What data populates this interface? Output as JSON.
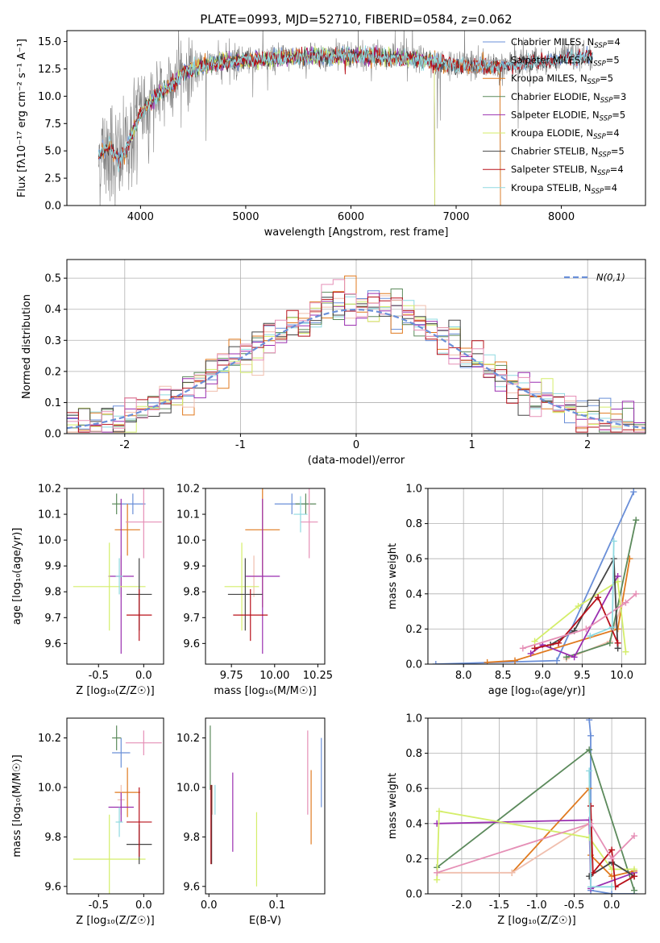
{
  "colors": [
    "#6a8fd8",
    "#e07a1f",
    "#f0bfae",
    "#5c8a5c",
    "#9a2fb0",
    "#d4ee6a",
    "#444444",
    "#b8101a",
    "#e58fb6",
    "#8fd9e0"
  ],
  "spectrum_colors": [
    "#6a8fd8",
    "#aaaaaa",
    "#e07a1f",
    "#5c8a5c",
    "#9a2fb0",
    "#d4ee6a",
    "#444444",
    "#b8101a",
    "#8fd9e0"
  ],
  "chart_data": [
    {
      "id": "spectrum",
      "type": "line",
      "title": "PLATE=0993, MJD=52710, FIBERID=0584, z=0.062",
      "xlabel": "wavelength [Angstrom, rest frame]",
      "ylabel": "Flux [fλ10⁻¹⁷ erg cm⁻² s⁻¹ A⁻¹]",
      "xlim": [
        3300,
        8800
      ],
      "ylim": [
        0,
        16
      ],
      "xticks": [
        4000,
        5000,
        6000,
        7000,
        8000
      ],
      "yticks": [
        0.0,
        2.5,
        5.0,
        7.5,
        10.0,
        12.5,
        15.0
      ],
      "legend_position": "top-right",
      "legend": [
        {
          "name": "Chabrier MILES, N",
          "sub": "SSP",
          "tail": "=4"
        },
        {
          "name": "Salpeter MILES, N",
          "sub": "SSP",
          "tail": "=5"
        },
        {
          "name": "Kroupa MILES, N",
          "sub": "SSP",
          "tail": "=5"
        },
        {
          "name": "Chabrier ELODIE, N",
          "sub": "SSP",
          "tail": "=3"
        },
        {
          "name": "Salpeter ELODIE, N",
          "sub": "SSP",
          "tail": "=5"
        },
        {
          "name": "Kroupa ELODIE, N",
          "sub": "SSP",
          "tail": "=4"
        },
        {
          "name": "Chabrier STELIB, N",
          "sub": "SSP",
          "tail": "=5"
        },
        {
          "name": "Salpeter STELIB, N",
          "sub": "SSP",
          "tail": "=4"
        },
        {
          "name": "Kroupa STELIB, N",
          "sub": "SSP",
          "tail": "=4"
        }
      ],
      "model_trend": {
        "x": [
          3600,
          3700,
          3800,
          3900,
          4000,
          4100,
          4200,
          4300,
          4400,
          4500,
          4700,
          5000,
          5300,
          5600,
          6000,
          6500,
          7000,
          7400,
          7800,
          8300
        ],
        "y": [
          4.5,
          5.5,
          4.0,
          6.0,
          8.5,
          9.5,
          10.5,
          11.0,
          12.0,
          12.5,
          13.0,
          13.3,
          13.5,
          13.6,
          13.7,
          13.5,
          12.8,
          12.7,
          13.2,
          13.6
        ]
      },
      "model_extents": [
        {
          "start": 3600,
          "end": 8300,
          "drop_at": null
        },
        {
          "start": 3600,
          "end": 7450,
          "drop_at": 7420
        },
        {
          "start": 3600,
          "end": 7450,
          "drop_at": 7420
        },
        {
          "start": 3900,
          "end": 6800,
          "drop_at": 6795
        },
        {
          "start": 3900,
          "end": 6800,
          "drop_at": 6795
        },
        {
          "start": 3900,
          "end": 6800,
          "drop_at": 6795
        },
        {
          "start": 3600,
          "end": 8300,
          "drop_at": null
        },
        {
          "start": 3600,
          "end": 8300,
          "drop_at": null
        },
        {
          "start": 3600,
          "end": 8300,
          "drop_at": null
        }
      ]
    },
    {
      "id": "residuals",
      "type": "histogram",
      "xlabel": "(data-model)/error",
      "ylabel": "Normed distribution",
      "xlim": [
        -2.5,
        2.5
      ],
      "ylim": [
        0,
        0.56
      ],
      "xticks": [
        -2,
        -1,
        0,
        1,
        2
      ],
      "yticks": [
        0.0,
        0.1,
        0.2,
        0.3,
        0.4,
        0.5
      ],
      "reference": {
        "label": "N(0,1)",
        "color": "#6a8fd8"
      },
      "bin_width": 0.1,
      "bin_start": -2.5
    },
    {
      "id": "age-vs-Z",
      "type": "errorbar",
      "xlabel": "Z [log₁₀(Z/Z☉)]",
      "ylabel": "age  [log₁₀(age/yr)]",
      "xlim": [
        -0.85,
        0.22
      ],
      "ylim": [
        9.52,
        10.2
      ],
      "xticks": [
        -0.5,
        0.0
      ],
      "yticks": [
        9.6,
        9.7,
        9.8,
        9.9,
        10.0,
        10.1,
        10.2
      ],
      "points": [
        {
          "x": -0.12,
          "y": 10.14,
          "xerr": 0.14,
          "yerr": 0.04
        },
        {
          "x": -0.18,
          "y": 10.04,
          "xerr": 0.14,
          "yerr": 0.1
        },
        {
          "x": -0.25,
          "y": 9.86,
          "xerr": 0.04,
          "yerr": 0.08
        },
        {
          "x": -0.3,
          "y": 10.14,
          "xerr": 0.05,
          "yerr": 0.04
        },
        {
          "x": -0.25,
          "y": 9.86,
          "xerr": 0.14,
          "yerr": 0.3
        },
        {
          "x": -0.38,
          "y": 9.82,
          "xerr": 0.4,
          "yerr": 0.17
        },
        {
          "x": -0.05,
          "y": 9.79,
          "xerr": 0.14,
          "yerr": 0.14
        },
        {
          "x": -0.05,
          "y": 9.71,
          "xerr": 0.14,
          "yerr": 0.1
        },
        {
          "x": 0.0,
          "y": 10.07,
          "xerr": 0.2,
          "yerr": 0.14
        },
        {
          "x": -0.27,
          "y": 9.86,
          "xerr": 0.04,
          "yerr": 0.07
        }
      ]
    },
    {
      "id": "age-vs-mass",
      "type": "errorbar",
      "xlabel": "mass [log₁₀(M/M☉)]",
      "ylabel": "",
      "xlim": [
        9.6,
        10.29
      ],
      "ylim": [
        9.52,
        10.2
      ],
      "xticks": [
        9.75,
        10.0,
        10.25
      ],
      "yticks": [
        9.6,
        9.7,
        9.8,
        9.9,
        10.0,
        10.1,
        10.2
      ],
      "points": [
        {
          "x": 10.1,
          "y": 10.14,
          "xerr": 0.1,
          "yerr": 0.04
        },
        {
          "x": 9.93,
          "y": 10.04,
          "xerr": 0.1,
          "yerr": 0.3
        },
        {
          "x": 9.88,
          "y": 9.86,
          "xerr": 0.04,
          "yerr": 0.08
        },
        {
          "x": 10.18,
          "y": 10.14,
          "xerr": 0.06,
          "yerr": 0.04
        },
        {
          "x": 9.93,
          "y": 9.86,
          "xerr": 0.1,
          "yerr": 0.3
        },
        {
          "x": 9.81,
          "y": 9.82,
          "xerr": 0.1,
          "yerr": 0.17
        },
        {
          "x": 9.83,
          "y": 9.79,
          "xerr": 0.1,
          "yerr": 0.14
        },
        {
          "x": 9.86,
          "y": 9.71,
          "xerr": 0.1,
          "yerr": 0.1
        },
        {
          "x": 10.2,
          "y": 10.07,
          "xerr": 0.05,
          "yerr": 0.14
        },
        {
          "x": 10.15,
          "y": 10.1,
          "xerr": 0.04,
          "yerr": 0.07
        }
      ]
    },
    {
      "id": "weight-vs-age",
      "type": "line",
      "xlabel": "age  [log₁₀(age/yr)]",
      "ylabel": "mass weight",
      "xlim": [
        7.55,
        10.3
      ],
      "ylim": [
        0,
        1
      ],
      "xticks": [
        8.0,
        8.5,
        9.0,
        9.5,
        10.0
      ],
      "yticks": [
        0.0,
        0.2,
        0.4,
        0.6,
        0.8,
        1.0
      ],
      "series": [
        {
          "x": [
            7.65,
            9.18,
            10.15
          ],
          "y": [
            0.0,
            0.02,
            0.98
          ]
        },
        {
          "x": [
            8.3,
            8.65,
            9.95,
            10.1
          ],
          "y": [
            0.01,
            0.02,
            0.2,
            0.6
          ]
        },
        {
          "x": [
            9.3,
            9.85,
            10.0
          ],
          "y": [
            0.03,
            0.13,
            0.34
          ]
        },
        {
          "x": [
            9.3,
            9.85,
            10.18
          ],
          "y": [
            0.04,
            0.12,
            0.82
          ]
        },
        {
          "x": [
            8.85,
            9.0,
            9.4,
            9.95
          ],
          "y": [
            0.06,
            0.11,
            0.04,
            0.5
          ]
        },
        {
          "x": [
            8.9,
            9.45,
            9.95,
            10.05
          ],
          "y": [
            0.13,
            0.33,
            0.47,
            0.07
          ]
        },
        {
          "x": [
            9.1,
            9.4,
            9.9,
            9.95
          ],
          "y": [
            0.11,
            0.19,
            0.6,
            0.09
          ]
        },
        {
          "x": [
            8.9,
            9.2,
            9.7,
            9.95
          ],
          "y": [
            0.09,
            0.12,
            0.38,
            0.12
          ]
        },
        {
          "x": [
            8.75,
            9.55,
            10.05,
            10.18
          ],
          "y": [
            0.09,
            0.2,
            0.35,
            0.4
          ]
        },
        {
          "x": [
            9.6,
            9.88,
            9.9
          ],
          "y": [
            0.16,
            0.21,
            0.7
          ]
        }
      ]
    },
    {
      "id": "mass-vs-Z",
      "type": "errorbar",
      "xlabel": "Z [log₁₀(Z/Z☉)]",
      "ylabel": "mass [log₁₀(M/M☉)]",
      "xlim": [
        -0.85,
        0.22
      ],
      "ylim": [
        9.57,
        10.28
      ],
      "xticks": [
        -0.5,
        0.0
      ],
      "yticks": [
        9.6,
        9.8,
        10.0,
        10.2
      ],
      "points": [
        {
          "x": -0.25,
          "y": 10.14,
          "xerr": 0.1,
          "yerr": 0.06
        },
        {
          "x": -0.18,
          "y": 9.98,
          "xerr": 0.14,
          "yerr": 0.1
        },
        {
          "x": -0.25,
          "y": 9.95,
          "xerr": 0.04,
          "yerr": 0.06
        },
        {
          "x": -0.3,
          "y": 10.2,
          "xerr": 0.05,
          "yerr": 0.05
        },
        {
          "x": -0.25,
          "y": 9.92,
          "xerr": 0.14,
          "yerr": 0.06
        },
        {
          "x": -0.38,
          "y": 9.71,
          "xerr": 0.4,
          "yerr": 0.18
        },
        {
          "x": -0.05,
          "y": 9.77,
          "xerr": 0.14,
          "yerr": 0.08
        },
        {
          "x": -0.05,
          "y": 9.86,
          "xerr": 0.14,
          "yerr": 0.14
        },
        {
          "x": 0.0,
          "y": 10.18,
          "xerr": 0.2,
          "yerr": 0.05
        },
        {
          "x": -0.27,
          "y": 9.86,
          "xerr": 0.04,
          "yerr": 0.06
        }
      ]
    },
    {
      "id": "mass-vs-ebv",
      "type": "errorbar",
      "xlabel": "E(B-V)",
      "ylabel": "",
      "xlim": [
        -0.005,
        0.17
      ],
      "ylim": [
        9.57,
        10.28
      ],
      "xticks": [
        0.0,
        0.1
      ],
      "yticks": [
        9.6,
        9.8,
        10.0,
        10.2
      ],
      "points": [
        {
          "x": 0.165,
          "y": 10.06,
          "xerr": 0,
          "yerr": 0.14
        },
        {
          "x": 0.15,
          "y": 9.92,
          "xerr": 0,
          "yerr": 0.15
        },
        {
          "x": 0.005,
          "y": 9.95,
          "xerr": 0,
          "yerr": 0.06
        },
        {
          "x": 0.002,
          "y": 10.12,
          "xerr": 0,
          "yerr": 0.13
        },
        {
          "x": 0.035,
          "y": 9.9,
          "xerr": 0,
          "yerr": 0.16
        },
        {
          "x": 0.07,
          "y": 9.75,
          "xerr": 0,
          "yerr": 0.15
        },
        {
          "x": 0.004,
          "y": 9.85,
          "xerr": 0,
          "yerr": 0.16
        },
        {
          "x": 0.003,
          "y": 9.85,
          "xerr": 0,
          "yerr": 0.16
        },
        {
          "x": 0.145,
          "y": 10.06,
          "xerr": 0,
          "yerr": 0.17
        },
        {
          "x": 0.009,
          "y": 9.95,
          "xerr": 0,
          "yerr": 0.06
        }
      ]
    },
    {
      "id": "weight-vs-Z",
      "type": "line",
      "xlabel": "Z [log₁₀(Z/Z☉)]",
      "ylabel": "mass weight",
      "xlim": [
        -2.45,
        0.45
      ],
      "ylim": [
        0,
        1
      ],
      "xticks": [
        -2.0,
        -1.5,
        -1.0,
        -0.5,
        0.0
      ],
      "yticks": [
        0.0,
        0.2,
        0.4,
        0.6,
        0.8,
        1.0
      ],
      "series": [
        {
          "x": [
            -0.3,
            -0.28,
            -0.28,
            0.0,
            0.3
          ],
          "y": [
            0.99,
            0.9,
            0.02,
            0.0,
            0.0
          ]
        },
        {
          "x": [
            -1.33,
            -0.3,
            -0.28,
            0.0,
            0.3
          ],
          "y": [
            0.12,
            0.6,
            0.22,
            0.1,
            0.13
          ]
        },
        {
          "x": [
            -2.33,
            -1.33,
            -0.3
          ],
          "y": [
            0.12,
            0.12,
            0.4
          ]
        },
        {
          "x": [
            -2.33,
            -0.3,
            0.3
          ],
          "y": [
            0.15,
            0.82,
            0.02
          ]
        },
        {
          "x": [
            -2.33,
            -0.3,
            -0.28,
            0.3
          ],
          "y": [
            0.4,
            0.42,
            0.03,
            0.12
          ]
        },
        {
          "x": [
            -2.33,
            -2.3,
            -0.3,
            0.0,
            0.3
          ],
          "y": [
            0.08,
            0.47,
            0.32,
            0.14,
            0.14
          ]
        },
        {
          "x": [
            -0.3,
            0.0,
            0.3
          ],
          "y": [
            0.1,
            0.18,
            0.1
          ]
        },
        {
          "x": [
            -0.28,
            -0.25,
            0.0,
            0.05,
            0.3
          ],
          "y": [
            0.5,
            0.12,
            0.25,
            0.04,
            0.1
          ]
        },
        {
          "x": [
            -2.33,
            -0.28,
            0.0,
            0.3
          ],
          "y": [
            0.12,
            0.4,
            0.2,
            0.33
          ]
        },
        {
          "x": [
            -0.3,
            -0.28,
            0.0
          ],
          "y": [
            0.7,
            0.04,
            0.04
          ]
        }
      ]
    }
  ]
}
